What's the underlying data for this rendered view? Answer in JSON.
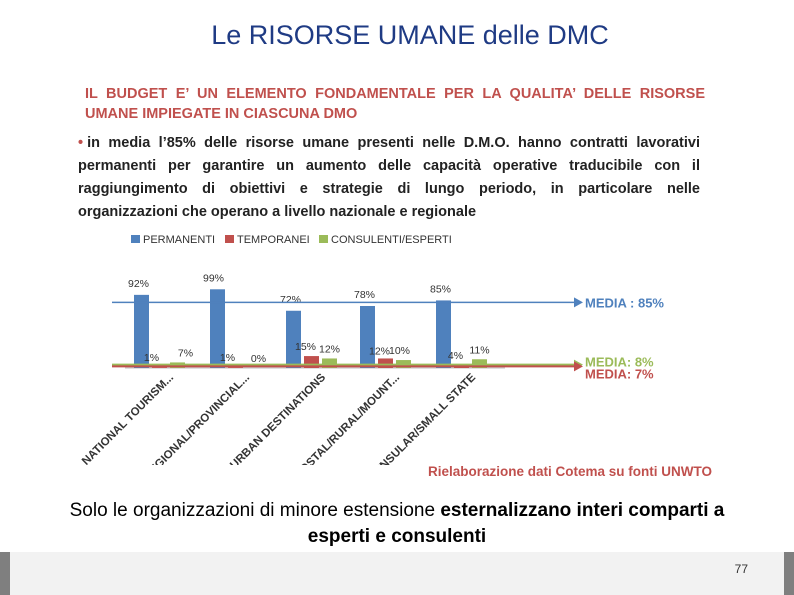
{
  "slide": {
    "title": "Le RISORSE UMANE delle DMC",
    "heading_line1": "IL BUDGET E’ UN ELEMENTO FONDAMENTALE PER LA QUALITA’ DELLE RISORSE",
    "heading_line2": "UMANE IMPIEGATE IN CIASCUNA DMO",
    "bullet": "•",
    "intro_line1_a": "in media l’85% delle risorse umane presenti nelle D.M.O.",
    "intro_line1_b": "hanno contratti lavorativi",
    "intro_line2": "permanenti per garantire un aumento delle capacità operative traducibile con il",
    "intro_line3": "raggiungimento di obiettivi e strategie di lungo periodo, in particolare nelle",
    "intro_line4": "organizzazioni che operano a livello nazionale e regionale",
    "source": "Rielaborazione dati Cotema su fonti UNWTO",
    "caption_plain": "Solo le organizzazioni di minore estensione ",
    "caption_bold": "esternalizzano interi comparti a esperti e consulenti",
    "page_number": "77"
  },
  "chart_data": {
    "type": "bar",
    "categories": [
      "NATIONAL TOURISM...",
      "REGIONAL/PROVINCIAL...",
      "URBAN DESTINATIONS",
      "COSTAL/RURAL/MOUNT...",
      "INSULAR/SMALL STATE"
    ],
    "series": [
      {
        "name": "PERMANENTI",
        "values": [
          92,
          99,
          72,
          78,
          85
        ],
        "labels": [
          "92%",
          "99%",
          "72%",
          "78%",
          "85%"
        ],
        "color": "#4f81bd"
      },
      {
        "name": "TEMPORANEI",
        "values": [
          1,
          1,
          15,
          12,
          4
        ],
        "labels": [
          "1%",
          "1%",
          "15%",
          "12%",
          "4%"
        ],
        "color": "#c0504d"
      },
      {
        "name": "CONSULENTI/ESPERTI",
        "values": [
          7,
          0,
          12,
          10,
          11
        ],
        "labels": [
          "7%",
          "0%",
          "12%",
          "10%",
          "11%"
        ],
        "color": "#9bbb59"
      }
    ],
    "ylim": [
      0,
      100
    ],
    "legend": "top",
    "grid": false,
    "reference_lines": [
      {
        "label": "MEDIA : 85%",
        "value": 85,
        "color": "#4f81bd"
      },
      {
        "label": "MEDIA: 8%",
        "value": 8,
        "color": "#9bbb59"
      },
      {
        "label": "MEDIA: 7%",
        "value": 7,
        "color": "#c0504d"
      }
    ]
  }
}
